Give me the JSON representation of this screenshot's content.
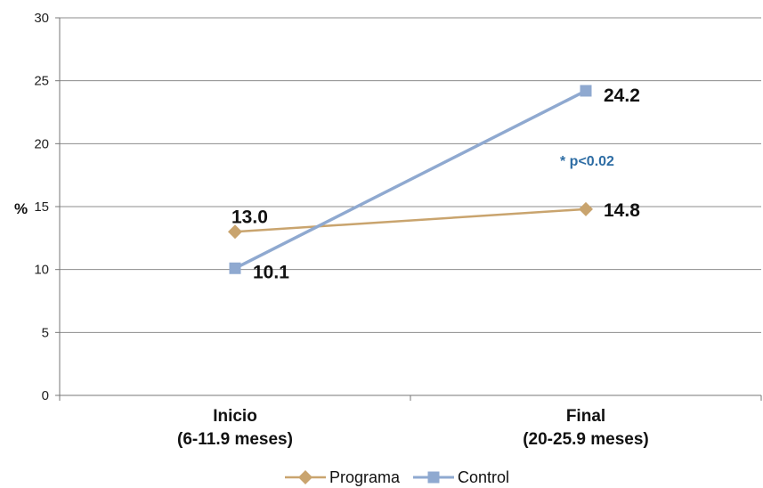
{
  "chart_data": {
    "type": "line",
    "ylabel": "%",
    "ylim": [
      0,
      30
    ],
    "yticks": [
      0,
      5,
      10,
      15,
      20,
      25,
      30
    ],
    "grid": "horizontal",
    "categories": [
      {
        "line1": "Inicio",
        "line2": "(6-11.9 meses)"
      },
      {
        "line1": "Final",
        "line2": "(20-25.9 meses)"
      }
    ],
    "series": [
      {
        "name": "Programa",
        "values": [
          13.0,
          14.8
        ],
        "labels": [
          "13.0",
          "14.8"
        ],
        "color": "#c9a46e",
        "marker": "diamond"
      },
      {
        "name": "Control",
        "values": [
          10.1,
          24.2
        ],
        "labels": [
          "10.1",
          "24.2"
        ],
        "color": "#8fa9d0",
        "marker": "square"
      }
    ],
    "annotation": {
      "text": "* p<0.02",
      "color": "#2e6da4"
    },
    "legend_position": "bottom"
  }
}
